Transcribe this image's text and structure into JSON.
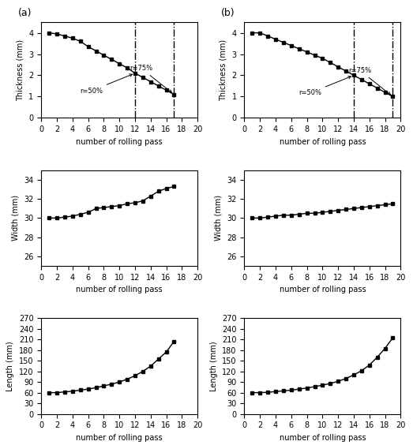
{
  "chart_data": [
    {
      "type": "line",
      "title": "(a)",
      "xlabel": "number of rolling pass",
      "ylabel": "Thickness (mm)",
      "x": [
        1,
        2,
        3,
        4,
        5,
        6,
        7,
        8,
        9,
        10,
        11,
        12,
        13,
        14,
        15,
        16,
        17
      ],
      "values": [
        4.0,
        3.95,
        3.85,
        3.75,
        3.6,
        3.35,
        3.15,
        2.95,
        2.75,
        2.55,
        2.35,
        2.1,
        1.9,
        1.7,
        1.5,
        1.3,
        1.1
      ],
      "xlim": [
        0,
        20
      ],
      "xticks": [
        0,
        2,
        4,
        6,
        8,
        10,
        12,
        14,
        16,
        18,
        20
      ],
      "ylim": [
        0,
        4.5
      ],
      "yticks": [
        0,
        1,
        2,
        3,
        4
      ],
      "color": "#000000",
      "marker": "square",
      "line_style": "solid",
      "vlines": [
        12,
        17
      ],
      "annotations": [
        {
          "text": "r=50%",
          "x": 12,
          "y": 2.1
        },
        {
          "text": "r=75%",
          "x": 17,
          "y": 1.1
        }
      ]
    },
    {
      "type": "line",
      "title": "(b)",
      "xlabel": "number of rolling pass",
      "ylabel": "Thickness (mm)",
      "x": [
        1,
        2,
        3,
        4,
        5,
        6,
        7,
        8,
        9,
        10,
        11,
        12,
        13,
        14,
        15,
        16,
        17,
        18,
        19
      ],
      "values": [
        4.0,
        4.0,
        3.85,
        3.7,
        3.55,
        3.4,
        3.25,
        3.1,
        2.95,
        2.8,
        2.6,
        2.4,
        2.2,
        2.0,
        1.8,
        1.6,
        1.4,
        1.2,
        1.0
      ],
      "xlim": [
        0,
        20
      ],
      "xticks": [
        0,
        2,
        4,
        6,
        8,
        10,
        12,
        14,
        16,
        18,
        20
      ],
      "ylim": [
        0,
        4.5
      ],
      "yticks": [
        0,
        1,
        2,
        3,
        4
      ],
      "color": "#000000",
      "marker": "square",
      "line_style": "solid",
      "vlines": [
        14,
        19
      ],
      "annotations": [
        {
          "text": "r=50%",
          "x": 14,
          "y": 2.0
        },
        {
          "text": "r=75%",
          "x": 19,
          "y": 1.0
        }
      ]
    },
    {
      "type": "line",
      "xlabel": "number of rolling pass",
      "ylabel": "Width (mm)",
      "x": [
        1,
        2,
        3,
        4,
        5,
        6,
        7,
        8,
        9,
        10,
        11,
        12,
        13,
        14,
        15,
        16,
        17
      ],
      "values": [
        30.0,
        30.0,
        30.1,
        30.2,
        30.4,
        30.6,
        31.0,
        31.1,
        31.2,
        31.3,
        31.5,
        31.6,
        31.8,
        32.3,
        32.8,
        33.1,
        33.3
      ],
      "xlim": [
        0,
        20
      ],
      "xticks": [
        0,
        2,
        4,
        6,
        8,
        10,
        12,
        14,
        16,
        18,
        20
      ],
      "ylim": [
        25,
        35
      ],
      "yticks": [
        26,
        28,
        30,
        32,
        34
      ],
      "color": "#000000",
      "marker": "square",
      "line_style": "solid"
    },
    {
      "type": "line",
      "xlabel": "number of rolling pass",
      "ylabel": "Width (mm)",
      "x": [
        1,
        2,
        3,
        4,
        5,
        6,
        7,
        8,
        9,
        10,
        11,
        12,
        13,
        14,
        15,
        16,
        17,
        18,
        19
      ],
      "values": [
        30.0,
        30.0,
        30.1,
        30.2,
        30.3,
        30.3,
        30.4,
        30.5,
        30.5,
        30.6,
        30.7,
        30.8,
        30.9,
        31.0,
        31.1,
        31.2,
        31.3,
        31.4,
        31.5
      ],
      "xlim": [
        0,
        20
      ],
      "xticks": [
        0,
        2,
        4,
        6,
        8,
        10,
        12,
        14,
        16,
        18,
        20
      ],
      "ylim": [
        25,
        35
      ],
      "yticks": [
        26,
        28,
        30,
        32,
        34
      ],
      "color": "#000000",
      "marker": "square",
      "line_style": "solid"
    },
    {
      "type": "line",
      "xlabel": "number of rolling pass",
      "ylabel": "Length (mm)",
      "x": [
        1,
        2,
        3,
        4,
        5,
        6,
        7,
        8,
        9,
        10,
        11,
        12,
        13,
        14,
        15,
        16,
        17
      ],
      "values": [
        60,
        60,
        62,
        64,
        67,
        70,
        74,
        79,
        84,
        90,
        98,
        108,
        120,
        135,
        155,
        175,
        205
      ],
      "xlim": [
        0,
        20
      ],
      "xticks": [
        0,
        2,
        4,
        6,
        8,
        10,
        12,
        14,
        16,
        18,
        20
      ],
      "ylim": [
        0,
        270
      ],
      "yticks": [
        0,
        30,
        60,
        90,
        120,
        150,
        180,
        210,
        240,
        270
      ],
      "color": "#000000",
      "marker": "square",
      "line_style": "solid"
    },
    {
      "type": "line",
      "xlabel": "number of rolling pass",
      "ylabel": "Length (mm)",
      "x": [
        1,
        2,
        3,
        4,
        5,
        6,
        7,
        8,
        9,
        10,
        11,
        12,
        13,
        14,
        15,
        16,
        17,
        18,
        19
      ],
      "values": [
        60,
        60,
        61,
        63,
        65,
        67,
        70,
        73,
        77,
        81,
        86,
        92,
        100,
        110,
        122,
        138,
        160,
        185,
        215
      ],
      "xlim": [
        0,
        20
      ],
      "xticks": [
        0,
        2,
        4,
        6,
        8,
        10,
        12,
        14,
        16,
        18,
        20
      ],
      "ylim": [
        0,
        270
      ],
      "yticks": [
        0,
        30,
        60,
        90,
        120,
        150,
        180,
        210,
        240,
        270
      ],
      "color": "#000000",
      "marker": "square",
      "line_style": "solid"
    }
  ]
}
